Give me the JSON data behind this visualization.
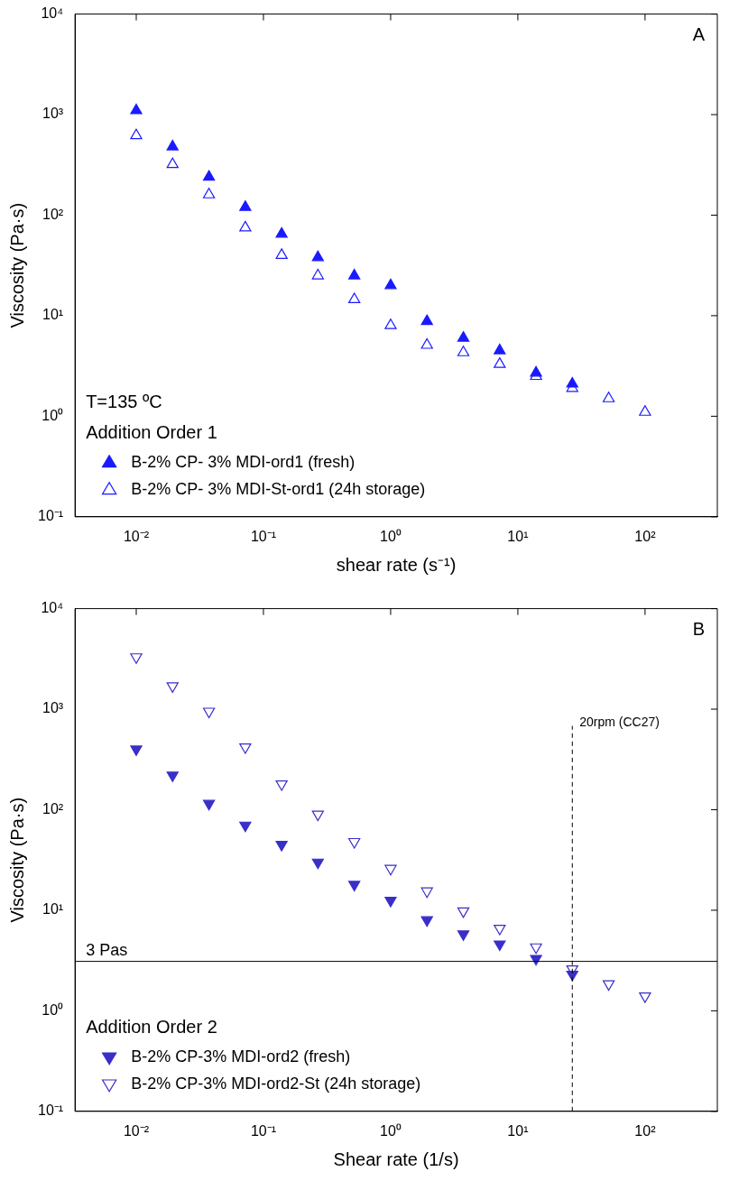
{
  "chart_data": [
    {
      "type": "scatter",
      "xlabel": "shear rate (s⁻¹)",
      "ylabel": "Viscosity (Pa·s)",
      "legend_title": "Addition Order 1",
      "annotations": [
        "A",
        "T=135 ºC"
      ],
      "x": [
        0.01,
        0.0193,
        0.0373,
        0.072,
        0.139,
        0.268,
        0.518,
        1,
        1.93,
        3.73,
        7.2,
        13.9,
        26.8,
        51.8,
        100
      ],
      "series": [
        {
          "name": "B-2% CP- 3% MDI-ord1 (fresh)",
          "color": "#1a1aff",
          "marker": "triangle",
          "values": [
            1100,
            480,
            240,
            120,
            65,
            38,
            25,
            20,
            8.8,
            6,
            4.5,
            2.7,
            2.1,
            null,
            null
          ]
        },
        {
          "name": "B-2% CP- 3% MDI-St-ord1 (24h storage)",
          "color": "#1a1aff",
          "marker": "triangle",
          "values": [
            620,
            320,
            160,
            75,
            40,
            25,
            14.5,
            8,
            5.1,
            4.3,
            3.3,
            2.5,
            1.9,
            1.5,
            1.1
          ]
        }
      ],
      "log": "xy",
      "xlim": [
        0.0033,
        370
      ],
      "ylim": [
        0.1,
        10000
      ],
      "xticks": [
        {
          "value": 0.01,
          "label": "10⁻²"
        },
        {
          "value": 0.1,
          "label": "10⁻¹"
        },
        {
          "value": 1,
          "label": "10⁰"
        },
        {
          "value": 10,
          "label": "10¹"
        },
        {
          "value": 100,
          "label": "10²"
        }
      ],
      "yticks": [
        {
          "value": 0.1,
          "label": "10⁻¹"
        },
        {
          "value": 1,
          "label": "10⁰"
        },
        {
          "value": 10,
          "label": "10¹"
        },
        {
          "value": 100,
          "label": "10²"
        },
        {
          "value": 1000,
          "label": "10³"
        },
        {
          "value": 10000,
          "label": "10⁴"
        }
      ],
      "legend": "bottom left"
    },
    {
      "type": "scatter",
      "xlabel": "Shear rate (1/s)",
      "ylabel": "Viscosity (Pa·s)",
      "legend_title": "Addition Order 2",
      "annotations": [
        "B"
      ],
      "x": [
        0.01,
        0.0193,
        0.0373,
        0.072,
        0.139,
        0.268,
        0.518,
        1,
        1.93,
        3.73,
        7.2,
        13.9,
        26.8,
        51.8,
        100
      ],
      "series": [
        {
          "name": "B-2% CP-3% MDI-ord2 (fresh)",
          "color": "#3a2fc8",
          "marker": "triangle-down",
          "values": [
            400,
            220,
            115,
            70,
            45,
            30,
            18,
            12.5,
            8,
            5.8,
            4.6,
            3.3,
            2.3,
            null,
            null
          ]
        },
        {
          "name": "B-2% CP-3% MDI-ord2-St (24h storage)",
          "color": "#3a2fc8",
          "marker": "triangle-down",
          "values": [
            3300,
            1700,
            950,
            420,
            180,
            90,
            48,
            26,
            15.5,
            9.8,
            6.6,
            4.3,
            2.6,
            1.85,
            1.4
          ]
        }
      ],
      "ref_lines": [
        {
          "axis": "y",
          "value": 3.1,
          "label": "3 Pas",
          "color": "#000000",
          "line_style": "solid"
        },
        {
          "axis": "x",
          "value": 26.8,
          "label": "20rpm (CC27)",
          "color": "#000000",
          "line_style": "dashed"
        }
      ],
      "log": "xy",
      "xlim": [
        0.0033,
        370
      ],
      "ylim": [
        0.1,
        10000
      ],
      "xticks": [
        {
          "value": 0.01,
          "label": "10⁻²"
        },
        {
          "value": 0.1,
          "label": "10⁻¹"
        },
        {
          "value": 1,
          "label": "10⁰"
        },
        {
          "value": 10,
          "label": "10¹"
        },
        {
          "value": 100,
          "label": "10²"
        }
      ],
      "yticks": [
        {
          "value": 0.1,
          "label": "10⁻¹"
        },
        {
          "value": 1,
          "label": "10⁰"
        },
        {
          "value": 10,
          "label": "10¹"
        },
        {
          "value": 100,
          "label": "10²"
        },
        {
          "value": 1000,
          "label": "10³"
        },
        {
          "value": 10000,
          "label": "10⁴"
        }
      ],
      "legend": "bottom left"
    }
  ]
}
